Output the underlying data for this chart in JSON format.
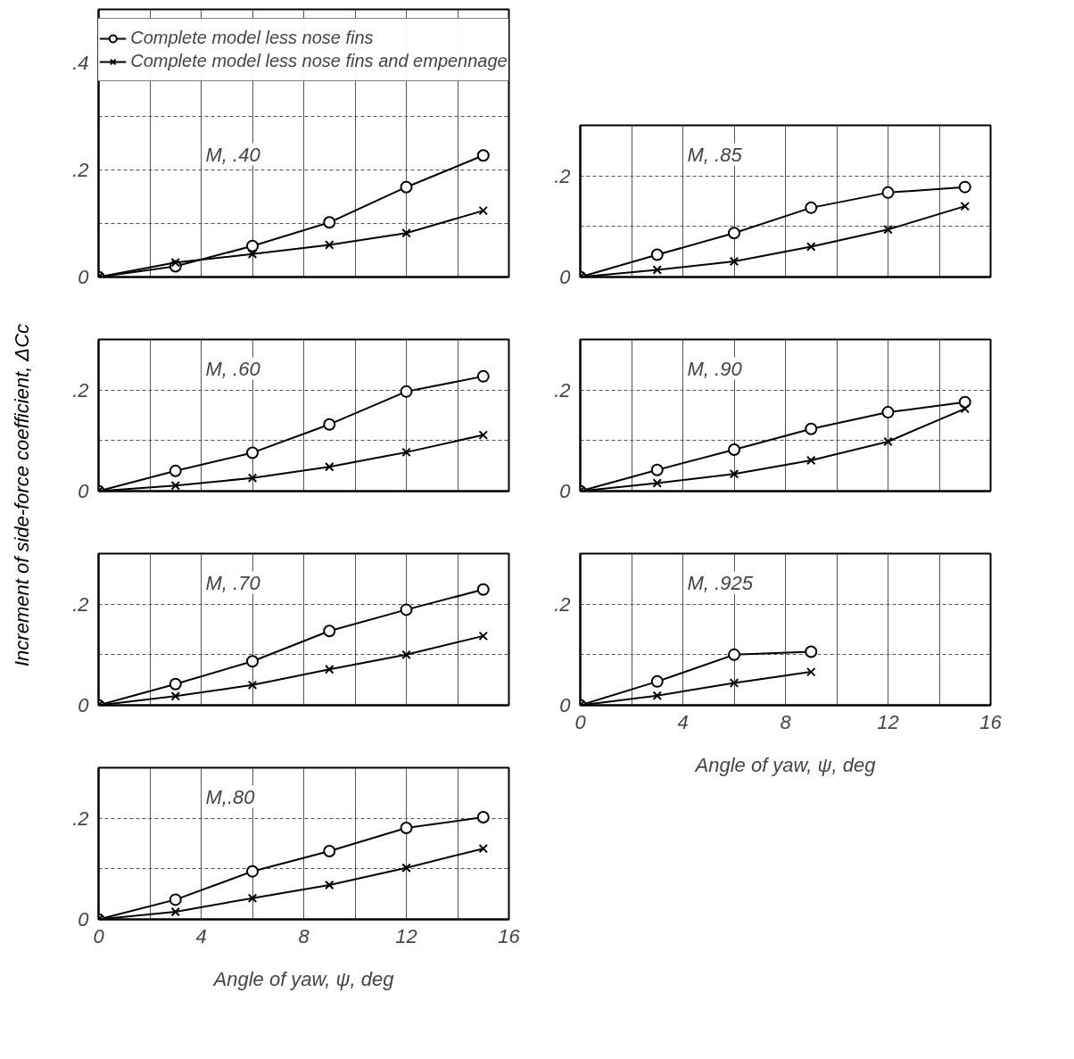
{
  "chart_data": [
    {
      "type": "line",
      "title": "M, .40",
      "ylabel": "Increment of side-force coefficient, ΔCc",
      "legend": "top",
      "grid": true,
      "tick_labels": "y",
      "x": [
        0,
        3,
        6,
        9,
        12,
        15
      ],
      "xlim": [
        0,
        16
      ],
      "ylim": [
        0,
        0.5
      ],
      "xticks": [
        {
          "value": 0,
          "label": null
        },
        {
          "value": 2,
          "label": null
        },
        {
          "value": 4,
          "label": null
        },
        {
          "value": 6,
          "label": null
        },
        {
          "value": 8,
          "label": null
        },
        {
          "value": 10,
          "label": null
        },
        {
          "value": 12,
          "label": null
        },
        {
          "value": 14,
          "label": null
        },
        {
          "value": 16,
          "label": null
        }
      ],
      "yticks": [
        {
          "value": 0,
          "label": "0"
        },
        {
          "value": 0.1,
          "label": null
        },
        {
          "value": 0.2,
          "label": ".2"
        },
        {
          "value": 0.3,
          "label": null
        },
        {
          "value": 0.4,
          "label": ".4"
        }
      ],
      "series": [
        {
          "name": "Complete model less nose fins",
          "color": "#000000",
          "marker": "circle",
          "values": [
            0,
            0.02,
            0.058,
            0.102,
            0.168,
            0.227
          ]
        },
        {
          "name": "Complete model less nose fins and empennage",
          "color": "#000000",
          "marker": "cross",
          "values": [
            0,
            0.027,
            0.043,
            0.06,
            0.082,
            0.124
          ]
        }
      ]
    },
    {
      "type": "line",
      "title": "M, .60",
      "grid": true,
      "tick_labels": "y",
      "x": [
        0,
        3,
        6,
        9,
        12,
        15
      ],
      "xlim": [
        0,
        16
      ],
      "ylim": [
        0,
        0.3
      ],
      "xticks": [
        {
          "value": 0,
          "label": null
        },
        {
          "value": 2,
          "label": null
        },
        {
          "value": 4,
          "label": null
        },
        {
          "value": 6,
          "label": null
        },
        {
          "value": 8,
          "label": null
        },
        {
          "value": 10,
          "label": null
        },
        {
          "value": 12,
          "label": null
        },
        {
          "value": 14,
          "label": null
        },
        {
          "value": 16,
          "label": null
        }
      ],
      "yticks": [
        {
          "value": 0,
          "label": "0"
        },
        {
          "value": 0.1,
          "label": null
        },
        {
          "value": 0.2,
          "label": ".2"
        }
      ],
      "series": [
        {
          "color": "#000000",
          "marker": "circle",
          "values": [
            0,
            0.04,
            0.076,
            0.132,
            0.197,
            0.227
          ]
        },
        {
          "color": "#000000",
          "marker": "cross",
          "values": [
            0,
            0.011,
            0.026,
            0.048,
            0.077,
            0.111
          ]
        }
      ]
    },
    {
      "type": "line",
      "title": "M, .70",
      "grid": true,
      "tick_labels": "y",
      "x": [
        0,
        3,
        6,
        9,
        12,
        15
      ],
      "xlim": [
        0,
        16
      ],
      "ylim": [
        0,
        0.3
      ],
      "xticks": [
        {
          "value": 0,
          "label": null
        },
        {
          "value": 2,
          "label": null
        },
        {
          "value": 4,
          "label": null
        },
        {
          "value": 6,
          "label": null
        },
        {
          "value": 8,
          "label": null
        },
        {
          "value": 10,
          "label": null
        },
        {
          "value": 12,
          "label": null
        },
        {
          "value": 14,
          "label": null
        },
        {
          "value": 16,
          "label": null
        }
      ],
      "yticks": [
        {
          "value": 0,
          "label": "0"
        },
        {
          "value": 0.1,
          "label": null
        },
        {
          "value": 0.2,
          "label": ".2"
        }
      ],
      "series": [
        {
          "color": "#000000",
          "marker": "circle",
          "values": [
            0,
            0.042,
            0.087,
            0.147,
            0.189,
            0.229
          ]
        },
        {
          "color": "#000000",
          "marker": "cross",
          "values": [
            0,
            0.018,
            0.04,
            0.071,
            0.1,
            0.137
          ]
        }
      ]
    },
    {
      "type": "line",
      "title": "M,.80",
      "xlabel": "Angle of yaw, ψ, deg",
      "grid": true,
      "x": [
        0,
        3,
        6,
        9,
        12,
        15
      ],
      "xlim": [
        0,
        16
      ],
      "ylim": [
        0,
        0.3
      ],
      "xticks": [
        {
          "value": 0,
          "label": "0"
        },
        {
          "value": 2,
          "label": null
        },
        {
          "value": 4,
          "label": "4"
        },
        {
          "value": 6,
          "label": null
        },
        {
          "value": 8,
          "label": "8"
        },
        {
          "value": 10,
          "label": null
        },
        {
          "value": 12,
          "label": "12"
        },
        {
          "value": 14,
          "label": null
        },
        {
          "value": 16,
          "label": "16"
        }
      ],
      "yticks": [
        {
          "value": 0,
          "label": "0"
        },
        {
          "value": 0.1,
          "label": null
        },
        {
          "value": 0.2,
          "label": ".2"
        }
      ],
      "series": [
        {
          "color": "#000000",
          "marker": "circle",
          "values": [
            0,
            0.039,
            0.095,
            0.135,
            0.181,
            0.202
          ]
        },
        {
          "color": "#000000",
          "marker": "cross",
          "values": [
            0,
            0.015,
            0.042,
            0.068,
            0.102,
            0.14
          ]
        }
      ]
    },
    {
      "type": "line",
      "title": "M, .85",
      "grid": true,
      "tick_labels": "y",
      "x": [
        0,
        3,
        6,
        9,
        12,
        15
      ],
      "xlim": [
        0,
        16
      ],
      "ylim": [
        0,
        0.3
      ],
      "xticks": [
        {
          "value": 0,
          "label": null
        },
        {
          "value": 2,
          "label": null
        },
        {
          "value": 4,
          "label": null
        },
        {
          "value": 6,
          "label": null
        },
        {
          "value": 8,
          "label": null
        },
        {
          "value": 10,
          "label": null
        },
        {
          "value": 12,
          "label": null
        },
        {
          "value": 14,
          "label": null
        },
        {
          "value": 16,
          "label": null
        }
      ],
      "yticks": [
        {
          "value": 0,
          "label": "0"
        },
        {
          "value": 0.1,
          "label": null
        },
        {
          "value": 0.2,
          "label": ".2"
        }
      ],
      "series": [
        {
          "color": "#000000",
          "marker": "circle",
          "values": [
            0,
            0.044,
            0.087,
            0.137,
            0.167,
            0.178
          ]
        },
        {
          "color": "#000000",
          "marker": "cross",
          "values": [
            0,
            0.014,
            0.031,
            0.06,
            0.094,
            0.14
          ]
        }
      ]
    },
    {
      "type": "line",
      "title": "M, .90",
      "grid": true,
      "tick_labels": "y",
      "x": [
        0,
        3,
        6,
        9,
        12,
        15
      ],
      "xlim": [
        0,
        16
      ],
      "ylim": [
        0,
        0.3
      ],
      "xticks": [
        {
          "value": 0,
          "label": null
        },
        {
          "value": 2,
          "label": null
        },
        {
          "value": 4,
          "label": null
        },
        {
          "value": 6,
          "label": null
        },
        {
          "value": 8,
          "label": null
        },
        {
          "value": 10,
          "label": null
        },
        {
          "value": 12,
          "label": null
        },
        {
          "value": 14,
          "label": null
        },
        {
          "value": 16,
          "label": null
        }
      ],
      "yticks": [
        {
          "value": 0,
          "label": "0"
        },
        {
          "value": 0.1,
          "label": null
        },
        {
          "value": 0.2,
          "label": ".2"
        }
      ],
      "series": [
        {
          "color": "#000000",
          "marker": "circle",
          "values": [
            0,
            0.042,
            0.082,
            0.123,
            0.156,
            0.176
          ]
        },
        {
          "color": "#000000",
          "marker": "cross",
          "values": [
            0,
            0.016,
            0.034,
            0.061,
            0.098,
            0.163
          ]
        }
      ]
    },
    {
      "type": "line",
      "title": "M, .925",
      "xlabel": "Angle of yaw, ψ, deg",
      "grid": true,
      "x": [
        0,
        3,
        6,
        9
      ],
      "xlim": [
        0,
        16
      ],
      "ylim": [
        0,
        0.3
      ],
      "xticks": [
        {
          "value": 0,
          "label": "0"
        },
        {
          "value": 2,
          "label": null
        },
        {
          "value": 4,
          "label": "4"
        },
        {
          "value": 6,
          "label": null
        },
        {
          "value": 8,
          "label": "8"
        },
        {
          "value": 10,
          "label": null
        },
        {
          "value": 12,
          "label": "12"
        },
        {
          "value": 14,
          "label": null
        },
        {
          "value": 16,
          "label": "16"
        }
      ],
      "yticks": [
        {
          "value": 0,
          "label": "0"
        },
        {
          "value": 0.1,
          "label": null
        },
        {
          "value": 0.2,
          "label": ".2"
        }
      ],
      "series": [
        {
          "color": "#000000",
          "marker": "circle",
          "values": [
            0,
            0.047,
            0.1,
            0.106
          ]
        },
        {
          "color": "#000000",
          "marker": "cross",
          "values": [
            0,
            0.019,
            0.044,
            0.066
          ]
        }
      ]
    }
  ]
}
